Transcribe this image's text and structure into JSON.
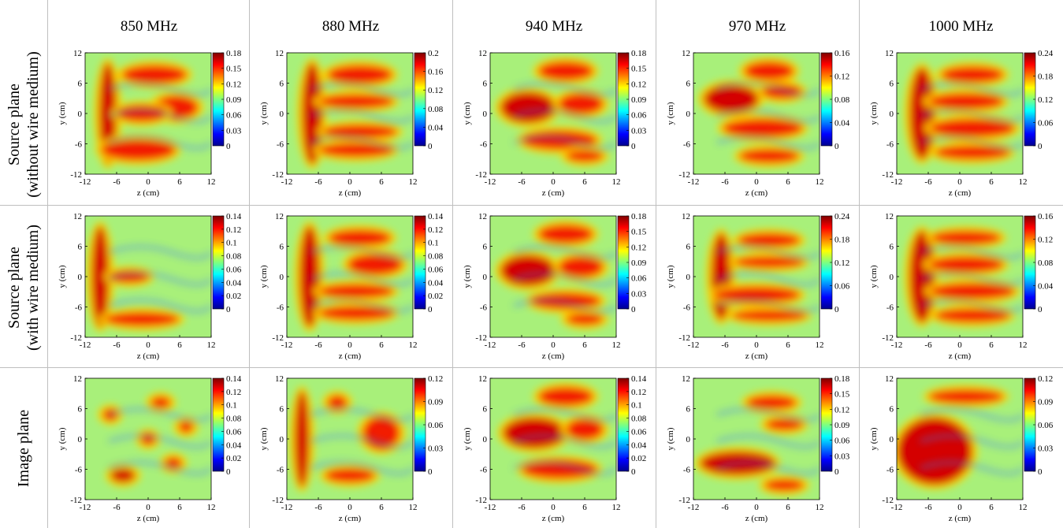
{
  "column_headers": [
    "850 MHz",
    "880 MHz",
    "940 MHz",
    "970 MHz",
    "1000 MHz"
  ],
  "row_labels": [
    {
      "line1": "Source plane",
      "line2": "(without wire medium)"
    },
    {
      "line1": "Source plane",
      "line2": "(with wire medium)"
    },
    {
      "line1": "Image plane",
      "line2": ""
    }
  ],
  "colormap": [
    "#00008f",
    "#0000ff",
    "#007fff",
    "#00ffff",
    "#7fff7f",
    "#ffff00",
    "#ff7f00",
    "#ff0000",
    "#7f0000"
  ],
  "chart_data": [
    {
      "type": "heatmap",
      "row": 0,
      "col": 0,
      "xlabel": "z (cm)",
      "ylabel": "y (cm)",
      "xticks": [
        -12,
        -6,
        0,
        6,
        12
      ],
      "yticks": [
        -12,
        -6,
        0,
        6,
        12
      ],
      "xlim": [
        -12,
        12
      ],
      "ylim": [
        -12,
        12
      ],
      "colorbar_ticks": [
        0,
        0.03,
        0.06,
        0.09,
        0.12,
        0.15,
        0.18
      ],
      "colorbar_labels": [
        "0",
        "0.03",
        "0.06",
        "0.09",
        "0.12",
        "0.15",
        "0.18"
      ],
      "vmax": 0.18
    },
    {
      "type": "heatmap",
      "row": 0,
      "col": 1,
      "xlabel": "z (cm)",
      "ylabel": "y (cm)",
      "xticks": [
        -12,
        -6,
        0,
        6,
        12
      ],
      "yticks": [
        -12,
        -6,
        0,
        6,
        12
      ],
      "xlim": [
        -12,
        12
      ],
      "ylim": [
        -12,
        12
      ],
      "colorbar_ticks": [
        0,
        0.04,
        0.08,
        0.12,
        0.16,
        0.2
      ],
      "colorbar_labels": [
        "0",
        "0.04",
        "0.08",
        "0.12",
        "0.16",
        "0.2"
      ],
      "vmax": 0.2
    },
    {
      "type": "heatmap",
      "row": 0,
      "col": 2,
      "xlabel": "z (cm)",
      "ylabel": "y (cm)",
      "xticks": [
        -12,
        -6,
        0,
        6,
        12
      ],
      "yticks": [
        -12,
        -6,
        0,
        6,
        12
      ],
      "xlim": [
        -12,
        12
      ],
      "ylim": [
        -12,
        12
      ],
      "colorbar_ticks": [
        0,
        0.03,
        0.06,
        0.09,
        0.12,
        0.15,
        0.18
      ],
      "colorbar_labels": [
        "0",
        "0.03",
        "0.06",
        "0.09",
        "0.12",
        "0.15",
        "0.18"
      ],
      "vmax": 0.18
    },
    {
      "type": "heatmap",
      "row": 0,
      "col": 3,
      "xlabel": "z (cm)",
      "ylabel": "y (cm)",
      "xticks": [
        -12,
        -6,
        0,
        6,
        12
      ],
      "yticks": [
        -12,
        -6,
        0,
        6,
        12
      ],
      "xlim": [
        -12,
        12
      ],
      "ylim": [
        -12,
        12
      ],
      "colorbar_ticks": [
        0,
        0.04,
        0.08,
        0.12,
        0.16
      ],
      "colorbar_labels": [
        "0",
        "0.04",
        "0.08",
        "0.12",
        "0.16"
      ],
      "vmax": 0.16
    },
    {
      "type": "heatmap",
      "row": 0,
      "col": 4,
      "xlabel": "z (cm)",
      "ylabel": "y (cm)",
      "xticks": [
        -12,
        -6,
        0,
        6,
        12
      ],
      "yticks": [
        -12,
        -6,
        0,
        6,
        12
      ],
      "xlim": [
        -12,
        12
      ],
      "ylim": [
        -12,
        12
      ],
      "colorbar_ticks": [
        0,
        0.06,
        0.12,
        0.18,
        0.24
      ],
      "colorbar_labels": [
        "0",
        "0.06",
        "0.12",
        "0.18",
        "0.24"
      ],
      "vmax": 0.24
    },
    {
      "type": "heatmap",
      "row": 1,
      "col": 0,
      "xlabel": "z (cm)",
      "ylabel": "y (cm)",
      "xticks": [
        -12,
        -6,
        0,
        6,
        12
      ],
      "yticks": [
        -12,
        -6,
        0,
        6,
        12
      ],
      "xlim": [
        -12,
        12
      ],
      "ylim": [
        -12,
        12
      ],
      "colorbar_ticks": [
        0,
        0.02,
        0.04,
        0.06,
        0.08,
        0.1,
        0.12,
        0.14
      ],
      "colorbar_labels": [
        "0",
        "0.02",
        "0.04",
        "0.06",
        "0.08",
        "0.1",
        "0.12",
        "0.14"
      ],
      "vmax": 0.14
    },
    {
      "type": "heatmap",
      "row": 1,
      "col": 1,
      "xlabel": "z (cm)",
      "ylabel": "y (cm)",
      "xticks": [
        -12,
        -6,
        0,
        6,
        12
      ],
      "yticks": [
        -12,
        -6,
        0,
        6,
        12
      ],
      "xlim": [
        -12,
        12
      ],
      "ylim": [
        -12,
        12
      ],
      "colorbar_ticks": [
        0,
        0.02,
        0.04,
        0.06,
        0.08,
        0.1,
        0.12,
        0.14
      ],
      "colorbar_labels": [
        "0",
        "0.02",
        "0.04",
        "0.06",
        "0.08",
        "0.1",
        "0.12",
        "0.14"
      ],
      "vmax": 0.14
    },
    {
      "type": "heatmap",
      "row": 1,
      "col": 2,
      "xlabel": "z (cm)",
      "ylabel": "y (cm)",
      "xticks": [
        -12,
        -6,
        0,
        6,
        12
      ],
      "yticks": [
        -12,
        -6,
        0,
        6,
        12
      ],
      "xlim": [
        -12,
        12
      ],
      "ylim": [
        -12,
        12
      ],
      "colorbar_ticks": [
        0,
        0.03,
        0.06,
        0.09,
        0.12,
        0.15,
        0.18
      ],
      "colorbar_labels": [
        "0",
        "0.03",
        "0.06",
        "0.09",
        "0.12",
        "0.15",
        "0.18"
      ],
      "vmax": 0.18
    },
    {
      "type": "heatmap",
      "row": 1,
      "col": 3,
      "xlabel": "z (cm)",
      "ylabel": "y (cm)",
      "xticks": [
        -12,
        -6,
        0,
        6,
        12
      ],
      "yticks": [
        -12,
        -6,
        0,
        6,
        12
      ],
      "xlim": [
        -12,
        12
      ],
      "ylim": [
        -12,
        12
      ],
      "colorbar_ticks": [
        0,
        0.06,
        0.12,
        0.18,
        0.24
      ],
      "colorbar_labels": [
        "0",
        "0.06",
        "0.12",
        "0.18",
        "0.24"
      ],
      "vmax": 0.24
    },
    {
      "type": "heatmap",
      "row": 1,
      "col": 4,
      "xlabel": "z (cm)",
      "ylabel": "y (cm)",
      "xticks": [
        -12,
        -6,
        0,
        6,
        12
      ],
      "yticks": [
        -12,
        -6,
        0,
        6,
        12
      ],
      "xlim": [
        -12,
        12
      ],
      "ylim": [
        -12,
        12
      ],
      "colorbar_ticks": [
        0,
        0.04,
        0.08,
        0.12,
        0.16
      ],
      "colorbar_labels": [
        "0",
        "0.04",
        "0.08",
        "0.12",
        "0.16"
      ],
      "vmax": 0.16
    },
    {
      "type": "heatmap",
      "row": 2,
      "col": 0,
      "xlabel": "z (cm)",
      "ylabel": "y (cm)",
      "xticks": [
        -12,
        -6,
        0,
        6,
        12
      ],
      "yticks": [
        -12,
        -6,
        0,
        6,
        12
      ],
      "xlim": [
        -12,
        12
      ],
      "ylim": [
        -12,
        12
      ],
      "colorbar_ticks": [
        0,
        0.02,
        0.04,
        0.06,
        0.08,
        0.1,
        0.12,
        0.14
      ],
      "colorbar_labels": [
        "0",
        "0.02",
        "0.04",
        "0.06",
        "0.08",
        "0.1",
        "0.12",
        "0.14"
      ],
      "vmax": 0.14
    },
    {
      "type": "heatmap",
      "row": 2,
      "col": 1,
      "xlabel": "z (cm)",
      "ylabel": "y (cm)",
      "xticks": [
        -12,
        -6,
        0,
        6,
        12
      ],
      "yticks": [
        -12,
        -6,
        0,
        6,
        12
      ],
      "xlim": [
        -12,
        12
      ],
      "ylim": [
        -12,
        12
      ],
      "colorbar_ticks": [
        0,
        0.03,
        0.06,
        0.09,
        0.12
      ],
      "colorbar_labels": [
        "0",
        "0.03",
        "0.06",
        "0.09",
        "0.12"
      ],
      "vmax": 0.12
    },
    {
      "type": "heatmap",
      "row": 2,
      "col": 2,
      "xlabel": "z (cm)",
      "ylabel": "y (cm)",
      "xticks": [
        -12,
        -6,
        0,
        6,
        12
      ],
      "yticks": [
        -12,
        -6,
        0,
        6,
        12
      ],
      "xlim": [
        -12,
        12
      ],
      "ylim": [
        -12,
        12
      ],
      "colorbar_ticks": [
        0,
        0.02,
        0.04,
        0.06,
        0.08,
        0.1,
        0.12,
        0.14
      ],
      "colorbar_labels": [
        "0",
        "0.02",
        "0.04",
        "0.06",
        "0.08",
        "0.1",
        "0.12",
        "0.14"
      ],
      "vmax": 0.14
    },
    {
      "type": "heatmap",
      "row": 2,
      "col": 3,
      "xlabel": "z (cm)",
      "ylabel": "y (cm)",
      "xticks": [
        -12,
        -6,
        0,
        6,
        12
      ],
      "yticks": [
        -12,
        -6,
        0,
        6,
        12
      ],
      "xlim": [
        -12,
        12
      ],
      "ylim": [
        -12,
        12
      ],
      "colorbar_ticks": [
        0,
        0.03,
        0.06,
        0.09,
        0.12,
        0.15,
        0.18
      ],
      "colorbar_labels": [
        "0",
        "0.03",
        "0.06",
        "0.09",
        "0.12",
        "0.15",
        "0.18"
      ],
      "vmax": 0.18
    },
    {
      "type": "heatmap",
      "row": 2,
      "col": 4,
      "xlabel": "z (cm)",
      "ylabel": "y (cm)",
      "xticks": [
        -12,
        -6,
        0,
        6,
        12
      ],
      "yticks": [
        -12,
        -6,
        0,
        6,
        12
      ],
      "xlim": [
        -12,
        12
      ],
      "ylim": [
        -12,
        12
      ],
      "colorbar_ticks": [
        0,
        0.03,
        0.06,
        0.09,
        0.12
      ],
      "colorbar_labels": [
        "0",
        "0.03",
        "0.06",
        "0.09",
        "0.12"
      ],
      "vmax": 0.12
    }
  ]
}
